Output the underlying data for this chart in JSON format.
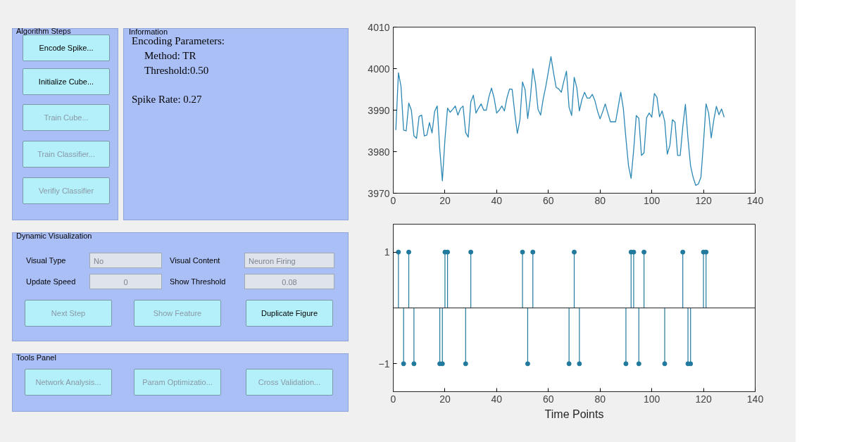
{
  "chart_data": [
    {
      "type": "other",
      "annotations": [
        "Algorithm Steps",
        "Encode Spike...",
        "Initialize Cube...",
        "Train Cube...",
        "Train Classifier...",
        "Verifiy Classifier",
        "Information",
        "Encoding Parameters:",
        "Method: TR",
        "Threshold:0.50",
        "Spike Rate: 0.27",
        "Dynamic Visualization",
        "Visual Type",
        "No",
        "Visual Content",
        "Neuron Firing",
        "Update Speed",
        "0",
        "Show Threshold",
        "0.08",
        "Next Step",
        "Show Feature",
        "Duplicate Figure",
        "Tools Panel",
        "Network Analysis...",
        "Param Optimizatio...",
        "Cross Validation..."
      ]
    },
    {
      "type": "line",
      "color": "#2b88b5",
      "xlim": [
        0,
        140
      ],
      "ylim": [
        3970,
        4010
      ],
      "xticks": [
        0,
        20,
        40,
        60,
        80,
        100,
        120,
        140
      ],
      "yticks": [
        3970,
        3980,
        3990,
        4000,
        4010
      ],
      "x": [
        1,
        2,
        3,
        4,
        5,
        6,
        7,
        8,
        9,
        10,
        11,
        12,
        13,
        14,
        15,
        16,
        17,
        18,
        19,
        20,
        21,
        22,
        23,
        24,
        25,
        26,
        27,
        28,
        29,
        30,
        31,
        32,
        33,
        34,
        35,
        36,
        37,
        38,
        39,
        40,
        41,
        42,
        43,
        44,
        45,
        46,
        47,
        48,
        49,
        50,
        51,
        52,
        53,
        54,
        55,
        56,
        57,
        58,
        59,
        60,
        61,
        62,
        63,
        64,
        65,
        66,
        67,
        68,
        69,
        70,
        71,
        72,
        73,
        74,
        75,
        76,
        77,
        78,
        79,
        80,
        81,
        82,
        83,
        84,
        85,
        86,
        87,
        88,
        89,
        90,
        91,
        92,
        93,
        94,
        95,
        96,
        97,
        98,
        99,
        100,
        101,
        102,
        103,
        104,
        105,
        106,
        107,
        108,
        109,
        110,
        111,
        112,
        113,
        114,
        115,
        116,
        117,
        118,
        119,
        120,
        121,
        122,
        123,
        124,
        125,
        126,
        127,
        128
      ],
      "values": [
        3985.2,
        3999,
        3995.7,
        3985.2,
        3985,
        3991.7,
        3990,
        3983.8,
        3983.2,
        3988.5,
        3988.8,
        3983.8,
        3984,
        3987,
        3984.5,
        3989.7,
        3991,
        3980.5,
        3973,
        3983,
        3990.5,
        3989.5,
        3990.2,
        3991,
        3988.8,
        3990.4,
        3991,
        3984.6,
        3983.5,
        3992,
        3993.6,
        3989.3,
        3990.5,
        3991.5,
        3990,
        3990,
        3993.2,
        3995.3,
        3993,
        3989.3,
        3990,
        3991,
        3989.8,
        3993,
        3995.1,
        3995,
        3989.3,
        3984.4,
        3987.7,
        3996.8,
        3994.9,
        3988,
        3992.7,
        4000,
        3996.5,
        3990.2,
        3988.8,
        3992.7,
        3995.7,
        3999.3,
        4002.9,
        3999,
        3995.5,
        3995.1,
        3994.3,
        3997,
        3999.4,
        3990.7,
        3988.7,
        3997.9,
        3995.4,
        3989.8,
        3992.6,
        3994.3,
        3992.9,
        3992.9,
        3993.8,
        3992.3,
        3989.8,
        3987.9,
        3989.6,
        3991.5,
        3989.3,
        3987.2,
        3987.2,
        3987.2,
        3990.7,
        3994.3,
        3990.4,
        3983.2,
        3976.6,
        3973.6,
        3980.4,
        3988.7,
        3988,
        3979.1,
        3979.7,
        3988.2,
        3989.3,
        3988.3,
        3994,
        3993.1,
        3988.4,
        3989.8,
        3987.3,
        3979.4,
        3981.5,
        3987.7,
        3987.1,
        3979.1,
        3979.1,
        3986,
        3991.4,
        3983.2,
        3976.6,
        3973.8,
        3971.9,
        3972.2,
        3973.8,
        3982.1,
        3991.5,
        3989.3,
        3983.3,
        3987.7,
        3990.9,
        3988.9,
        3990.3,
        3988.3
      ]
    },
    {
      "type": "lollipop",
      "color": "#217a9e",
      "marker": "circle",
      "xlabel": "Time Points",
      "xlim": [
        0,
        140
      ],
      "ylim": [
        -1.5,
        1.5
      ],
      "xticks": [
        0,
        20,
        40,
        60,
        80,
        100,
        120,
        140
      ],
      "yticks": [
        -1,
        1
      ],
      "ref_lines": [
        {
          "axis": "y",
          "value": 0
        }
      ],
      "x": [
        2,
        4,
        6,
        8,
        18,
        19,
        20,
        21,
        28,
        30,
        50,
        52,
        54,
        68,
        70,
        72,
        90,
        92,
        93,
        95,
        97,
        105,
        112,
        114,
        115,
        120,
        121
      ],
      "values": [
        1,
        -1,
        1,
        -1,
        -1,
        -1,
        1,
        1,
        -1,
        1,
        1,
        -1,
        1,
        -1,
        1,
        -1,
        -1,
        1,
        1,
        -1,
        1,
        -1,
        1,
        -1,
        -1,
        1,
        1
      ]
    }
  ]
}
